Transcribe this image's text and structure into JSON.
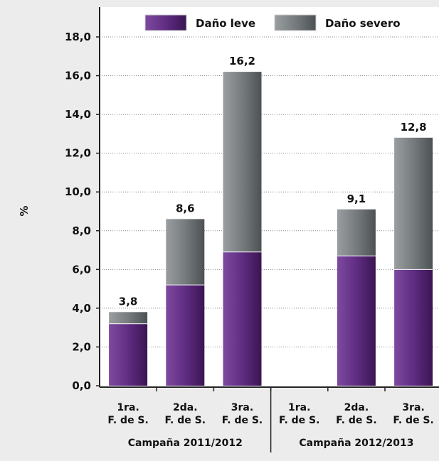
{
  "chart_data": {
    "type": "bar",
    "stacked": true,
    "ylabel": "%",
    "xlabel": "",
    "title": "",
    "ylim": [
      0,
      18
    ],
    "yticks": [
      0,
      2,
      4,
      6,
      8,
      10,
      12,
      14,
      16,
      18
    ],
    "ytick_labels": [
      "0,0",
      "2,0",
      "4,0",
      "6,0",
      "8,0",
      "10,0",
      "12,0",
      "14,0",
      "16,0",
      "18,0"
    ],
    "grid": "horizontal-dotted",
    "legend_position": "top",
    "categories": [
      {
        "line1": "1ra.",
        "line2": "F. de S."
      },
      {
        "line1": "2da.",
        "line2": "F. de S."
      },
      {
        "line1": "3ra.",
        "line2": "F. de S."
      },
      {
        "line1": "1ra.",
        "line2": "F. de S."
      },
      {
        "line1": "2da.",
        "line2": "F. de S."
      },
      {
        "line1": "3ra.",
        "line2": "F. de S."
      }
    ],
    "groups": [
      {
        "label": "Campaña 2011/2012",
        "categories": [
          0,
          1,
          2
        ]
      },
      {
        "label": "Campaña 2012/2013",
        "categories": [
          3,
          4,
          5
        ]
      }
    ],
    "series": [
      {
        "name": "Daño leve",
        "color": "#5c2a7e",
        "values": [
          3.2,
          5.2,
          6.9,
          null,
          6.7,
          6.0
        ]
      },
      {
        "name": "Daño severo",
        "color": "#6f7375",
        "values": [
          0.6,
          3.4,
          9.3,
          null,
          2.4,
          6.8
        ]
      }
    ],
    "totals": [
      3.8,
      8.6,
      16.2,
      null,
      9.1,
      12.8
    ],
    "total_labels": [
      "3,8",
      "8,6",
      "16,2",
      "",
      "9,1",
      "12,8"
    ]
  }
}
